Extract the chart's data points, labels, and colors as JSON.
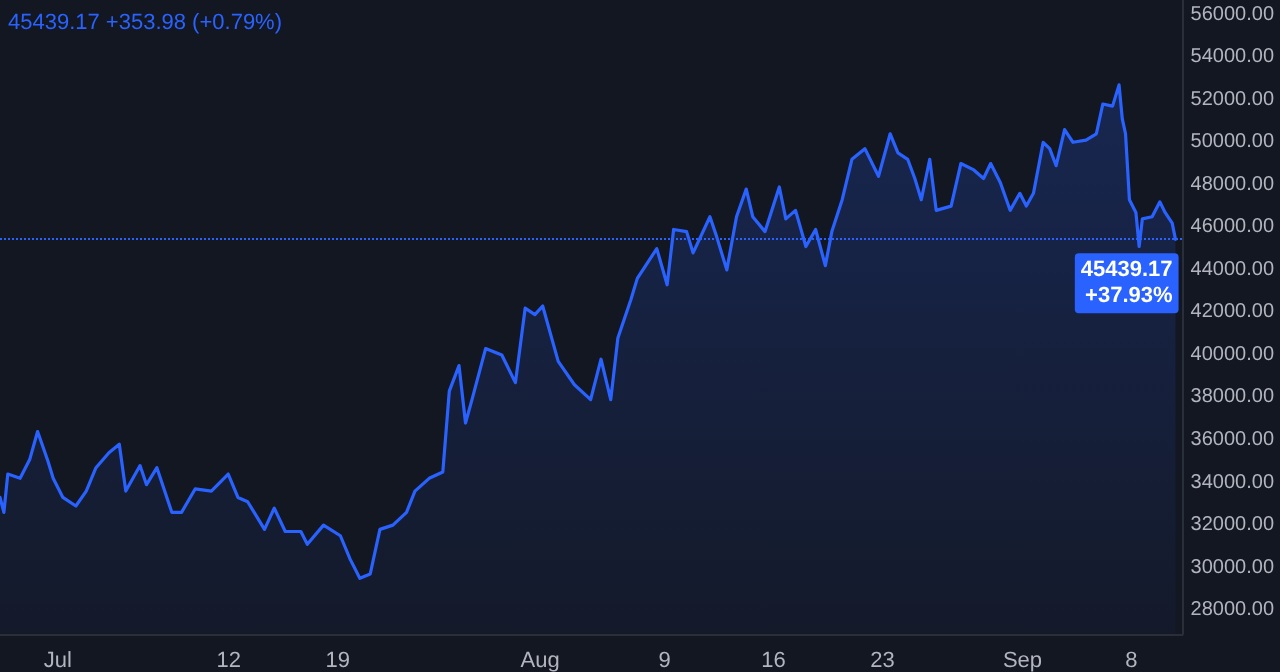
{
  "chart_data": {
    "type": "area",
    "annotations": [
      "45439.17 +353.98 (+0.79%)"
    ],
    "x": [
      "--06-27T07:00",
      "--06-27T13:00",
      "--06-27T19:00",
      "--06-28T14:00",
      "--06-29T05:00",
      "--06-29T17:00",
      "--06-30T09:00",
      "--06-30T17:00",
      "--07-01T08:00",
      "--07-02T04:00",
      "--07-02T20:00",
      "--07-03T11:00",
      "--07-04T07:00",
      "--07-04T23:00",
      "--07-05T09:00",
      "--07-06T07:00",
      "--07-06T17:00",
      "--07-07T09:00",
      "--07-08T08:00",
      "--07-08T23:00",
      "--07-09T20:00",
      "--07-10T21:00",
      "--07-11T23:00",
      "--07-12T14:00",
      "--07-13T05:00",
      "--07-14T07:00",
      "--07-14T22:00",
      "--07-15T15:00",
      "--07-16T15:00",
      "--07-17T01:00",
      "--07-18T02:00",
      "--07-19T04:00",
      "--07-19T19:00",
      "--07-20T10:00",
      "--07-21T02:00",
      "--07-21T17:00",
      "--07-22T13:00",
      "--07-23T10:00",
      "--07-23T23:00",
      "--07-24T21:00",
      "--07-25T18:00",
      "--07-26T04:00",
      "--07-26T19:00",
      "--07-27T05:00",
      "--07-27T15:00",
      "--07-28T12:00",
      "--07-29T13:00",
      "--07-30T10:00",
      "--07-31T01:00",
      "--07-31T16:00",
      "--08-01T04:00",
      "--08-02T04:00",
      "--08-03T05:00",
      "--08-04T06:00",
      "--08-04T22:00",
      "--08-05T13:00",
      "--08-06T00:00",
      "--08-06T20:00",
      "--08-07T06:00",
      "--08-08T12:00",
      "--08-09T04:00",
      "--08-09T14:00",
      "--08-10T10:00",
      "--08-10T20:00",
      "--08-11T22:00",
      "--08-12T08:00",
      "--08-13T00:00",
      "--08-13T15:00",
      "--08-14T06:00",
      "--08-14T16:00",
      "--08-15T11:00",
      "--08-16T09:00",
      "--08-16T19:00",
      "--08-17T10:00",
      "--08-18T02:00",
      "--08-18T17:00",
      "--08-19T08:00",
      "--08-19T18:00",
      "--08-20T10:00",
      "--08-21T01:00",
      "--08-21T21:00",
      "--08-22T18:00",
      "--08-23T12:00",
      "--08-24T00:00",
      "--08-24T15:00",
      "--08-25T02:00",
      "--08-25T12:00",
      "--08-26T01:00",
      "--08-26T11:00",
      "--08-27T10:00",
      "--08-28T01:00",
      "--08-28T21:00",
      "--08-29T12:00",
      "--08-29T23:00",
      "--08-30T14:00",
      "--08-31T05:00",
      "--08-31T20:00",
      "--09-01T06:00",
      "--09-01T17:00",
      "--09-02T08:00",
      "--09-02T18:00",
      "--09-03T04:00",
      "--09-03T17:00",
      "--09-04T06:00",
      "--09-05T02:00",
      "--09-05T18:00",
      "--09-06T04:00",
      "--09-06T19:00",
      "--09-07T05:00",
      "--09-07T10:00",
      "--09-07T15:00",
      "--09-07T21:00",
      "--09-08T07:00",
      "--09-08T12:00",
      "--09-08T17:00",
      "--09-09T08:00",
      "--09-09T20:00",
      "--09-10T04:00",
      "--09-10T15:00",
      "--09-10T20:00"
    ],
    "series": [
      {
        "color": "#2962ff",
        "values": [
          33300,
          32600,
          34400,
          34200,
          35100,
          36400,
          35000,
          34200,
          33300,
          32900,
          33600,
          34700,
          35400,
          35800,
          33600,
          34800,
          33900,
          34700,
          32600,
          32600,
          33700,
          33600,
          34400,
          33300,
          33100,
          31800,
          32800,
          31700,
          31700,
          31100,
          32000,
          31500,
          30400,
          29500,
          29700,
          31800,
          32000,
          32600,
          33600,
          34200,
          34500,
          38300,
          39500,
          36800,
          37900,
          40300,
          40000,
          38700,
          42200,
          41900,
          42300,
          39700,
          38600,
          37900,
          39800,
          37900,
          40800,
          42600,
          43600,
          45000,
          43300,
          45900,
          45800,
          44800,
          46500,
          45600,
          44000,
          46500,
          47800,
          46500,
          45800,
          47900,
          46400,
          46800,
          45100,
          45900,
          44200,
          45800,
          47300,
          49200,
          49700,
          48400,
          50400,
          49500,
          49200,
          48300,
          47300,
          49200,
          46800,
          47000,
          49000,
          48700,
          48300,
          49000,
          48100,
          46800,
          47600,
          47000,
          47600,
          50000,
          49700,
          48900,
          50600,
          50000,
          50100,
          50400,
          51800,
          51700,
          52700,
          51100,
          50400,
          47300,
          46700,
          45100,
          46400,
          46500,
          47200,
          46700,
          46200,
          45439.17
        ]
      }
    ],
    "xlim": [
      "--06-27T07:00",
      "--09-11T07:00"
    ],
    "xticks": [
      {
        "value": "--07-01",
        "label": "Jul"
      },
      {
        "value": "--07-12",
        "label": "12"
      },
      {
        "value": "--07-19",
        "label": "19"
      },
      {
        "value": "--08-01",
        "label": "Aug"
      },
      {
        "value": "--08-09",
        "label": "9"
      },
      {
        "value": "--08-16",
        "label": "16"
      },
      {
        "value": "--08-23",
        "label": "23"
      },
      {
        "value": "--09-01",
        "label": "Sep"
      },
      {
        "value": "--09-08",
        "label": "8"
      }
    ],
    "ylim": [
      26880,
      56690
    ],
    "yticks": [
      {
        "value": 28000,
        "label": "28000.00"
      },
      {
        "value": 30000,
        "label": "30000.00"
      },
      {
        "value": 32000,
        "label": "32000.00"
      },
      {
        "value": 34000,
        "label": "34000.00"
      },
      {
        "value": 36000,
        "label": "36000.00"
      },
      {
        "value": 38000,
        "label": "38000.00"
      },
      {
        "value": 40000,
        "label": "40000.00"
      },
      {
        "value": 42000,
        "label": "42000.00"
      },
      {
        "value": 44000,
        "label": "44000.00"
      },
      {
        "value": 46000,
        "label": "46000.00"
      },
      {
        "value": 48000,
        "label": "48000.00"
      },
      {
        "value": 50000,
        "label": "50000.00"
      },
      {
        "value": 52000,
        "label": "52000.00"
      },
      {
        "value": 54000,
        "label": "54000.00"
      },
      {
        "value": 56000,
        "label": "56000.00"
      }
    ],
    "ref_lines": [
      {
        "axis": "y",
        "value": 45439.17,
        "label": "45439.17\n+37.93%",
        "color": "#2962ff",
        "line_style": "dotted"
      }
    ],
    "marker": "none",
    "line_style": "solid"
  }
}
